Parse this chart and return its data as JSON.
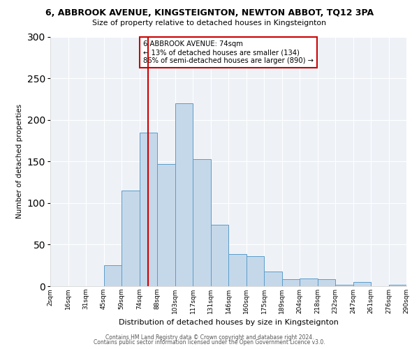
{
  "title1": "6, ABBROOK AVENUE, KINGSTEIGNTON, NEWTON ABBOT, TQ12 3PA",
  "title2": "Size of property relative to detached houses in Kingsteignton",
  "xlabel": "Distribution of detached houses by size in Kingsteignton",
  "ylabel": "Number of detached properties",
  "bin_labels": [
    "2sqm",
    "16sqm",
    "31sqm",
    "45sqm",
    "59sqm",
    "74sqm",
    "88sqm",
    "103sqm",
    "117sqm",
    "131sqm",
    "146sqm",
    "160sqm",
    "175sqm",
    "189sqm",
    "204sqm",
    "218sqm",
    "232sqm",
    "247sqm",
    "261sqm",
    "276sqm",
    "290sqm"
  ],
  "bar_heights": [
    0,
    0,
    0,
    25,
    115,
    185,
    147,
    220,
    153,
    74,
    39,
    36,
    18,
    8,
    9,
    8,
    2,
    5,
    0,
    2
  ],
  "bar_color": "#c5d8ea",
  "bar_edge_color": "#5b9cc9",
  "vline_index": 5,
  "vline_color": "#cc0000",
  "annotation_text": "6 ABBROOK AVENUE: 74sqm\n← 13% of detached houses are smaller (134)\n86% of semi-detached houses are larger (890) →",
  "annotation_box_color": "#ffffff",
  "annotation_box_edge_color": "#cc0000",
  "ylim": [
    0,
    300
  ],
  "yticks": [
    0,
    50,
    100,
    150,
    200,
    250,
    300
  ],
  "footer1": "Contains HM Land Registry data © Crown copyright and database right 2024.",
  "footer2": "Contains public sector information licensed under the Open Government Licence v3.0.",
  "bg_color": "#eef2f7"
}
